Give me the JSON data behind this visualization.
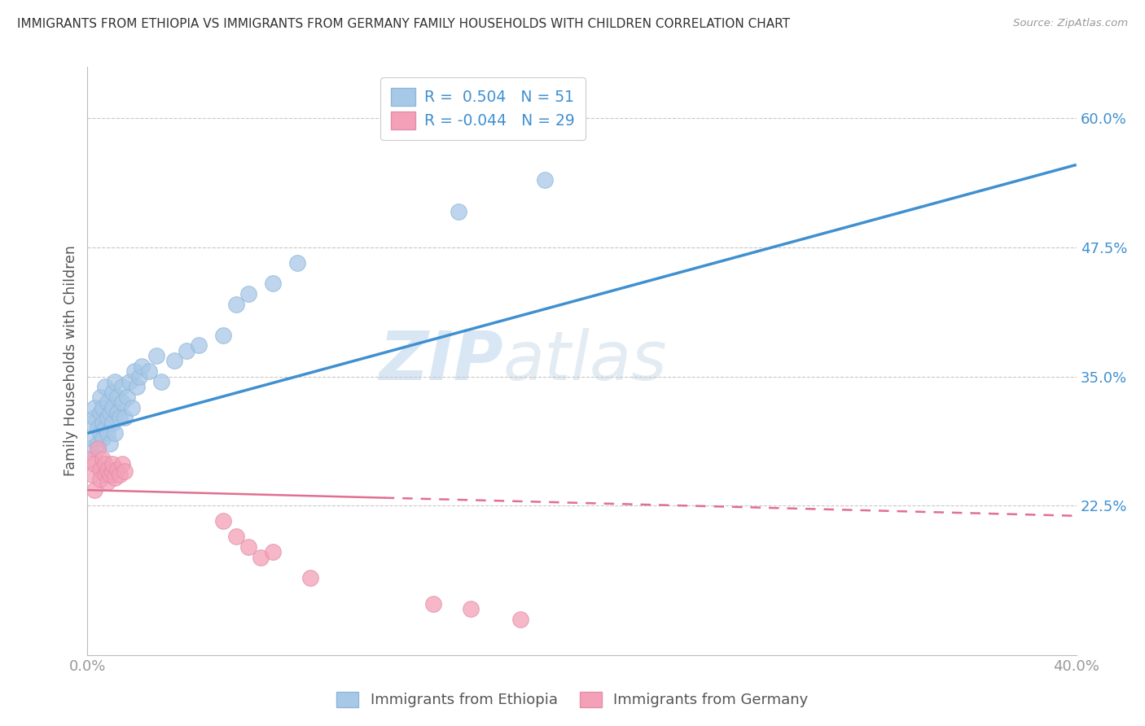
{
  "title": "IMMIGRANTS FROM ETHIOPIA VS IMMIGRANTS FROM GERMANY FAMILY HOUSEHOLDS WITH CHILDREN CORRELATION CHART",
  "source": "Source: ZipAtlas.com",
  "ylabel": "Family Households with Children",
  "xlim": [
    0.0,
    0.4
  ],
  "ylim": [
    0.08,
    0.65
  ],
  "x_ticks": [
    0.0,
    0.4
  ],
  "x_tick_labels": [
    "0.0%",
    "40.0%"
  ],
  "y_ticks": [
    0.225,
    0.35,
    0.475,
    0.6
  ],
  "y_tick_labels": [
    "22.5%",
    "35.0%",
    "47.5%",
    "60.0%"
  ],
  "watermark_zip": "ZIP",
  "watermark_atlas": "atlas",
  "color_blue": "#A8C8E8",
  "color_pink": "#F4A0B8",
  "line_blue": "#4090D0",
  "line_pink": "#E07090",
  "bg_color": "#FFFFFF",
  "grid_color": "#C8C8C8",
  "legend_text_color": "#4090D0",
  "ethiopia_x": [
    0.001,
    0.002,
    0.002,
    0.003,
    0.003,
    0.004,
    0.004,
    0.005,
    0.005,
    0.005,
    0.006,
    0.006,
    0.006,
    0.007,
    0.007,
    0.008,
    0.008,
    0.008,
    0.009,
    0.009,
    0.01,
    0.01,
    0.01,
    0.011,
    0.011,
    0.012,
    0.012,
    0.013,
    0.014,
    0.014,
    0.015,
    0.016,
    0.017,
    0.018,
    0.019,
    0.02,
    0.021,
    0.022,
    0.025,
    0.028,
    0.03,
    0.035,
    0.04,
    0.045,
    0.055,
    0.06,
    0.065,
    0.075,
    0.085,
    0.15,
    0.185
  ],
  "ethiopia_y": [
    0.28,
    0.29,
    0.305,
    0.31,
    0.32,
    0.285,
    0.3,
    0.295,
    0.315,
    0.33,
    0.29,
    0.305,
    0.32,
    0.3,
    0.34,
    0.295,
    0.31,
    0.325,
    0.285,
    0.315,
    0.305,
    0.32,
    0.335,
    0.295,
    0.345,
    0.315,
    0.33,
    0.31,
    0.325,
    0.34,
    0.31,
    0.33,
    0.345,
    0.32,
    0.355,
    0.34,
    0.35,
    0.36,
    0.355,
    0.37,
    0.345,
    0.365,
    0.375,
    0.38,
    0.39,
    0.42,
    0.43,
    0.44,
    0.46,
    0.51,
    0.54
  ],
  "germany_x": [
    0.001,
    0.002,
    0.003,
    0.003,
    0.004,
    0.005,
    0.005,
    0.006,
    0.007,
    0.007,
    0.008,
    0.008,
    0.009,
    0.01,
    0.01,
    0.011,
    0.012,
    0.013,
    0.014,
    0.015,
    0.055,
    0.06,
    0.065,
    0.07,
    0.075,
    0.09,
    0.14,
    0.155,
    0.175
  ],
  "germany_y": [
    0.27,
    0.255,
    0.265,
    0.24,
    0.28,
    0.26,
    0.25,
    0.27,
    0.255,
    0.265,
    0.26,
    0.248,
    0.255,
    0.258,
    0.265,
    0.252,
    0.26,
    0.255,
    0.265,
    0.258,
    0.21,
    0.195,
    0.185,
    0.175,
    0.18,
    0.155,
    0.13,
    0.125,
    0.115
  ],
  "eth_trend_x0": 0.0,
  "eth_trend_y0": 0.295,
  "eth_trend_x1": 0.4,
  "eth_trend_y1": 0.555,
  "ger_trend_x0": 0.0,
  "ger_trend_y0": 0.24,
  "ger_trend_x1": 0.4,
  "ger_trend_y1": 0.215
}
